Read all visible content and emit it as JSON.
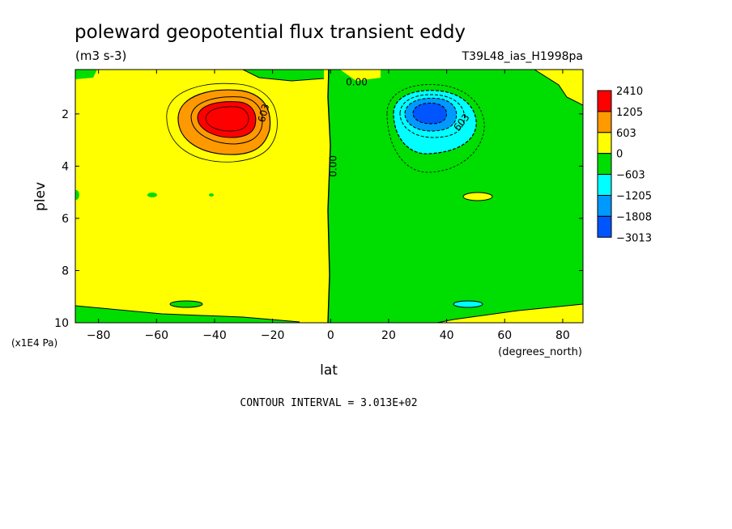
{
  "chart_data": {
    "type": "heatmap",
    "title": "poleward geopotential flux transient eddy",
    "units": "(m3 s-3)",
    "dataset": "T39L48_ias_H1998pa",
    "xlabel": "lat",
    "x_units": "(degrees_north)",
    "ylabel": "plev",
    "y_units": "(x1E4 Pa)",
    "xlim": [
      -88,
      87
    ],
    "ylim": [
      0.3,
      10
    ],
    "y_inverted": true,
    "x_ticks": [
      -80,
      -60,
      -40,
      -20,
      0,
      20,
      40,
      60,
      80
    ],
    "x_tick_labels": [
      "−80",
      "−60",
      "−40",
      "−20",
      "0",
      "20",
      "40",
      "60",
      "80"
    ],
    "y_ticks": [
      2,
      4,
      6,
      8,
      10
    ],
    "y_tick_labels": [
      "2",
      "4",
      "6",
      "8",
      "10"
    ],
    "contour_interval_label": "CONTOUR INTERVAL = 3.013E+02",
    "contour_labels": [
      {
        "text": "0.00",
        "lat": 9,
        "plev": 0.9,
        "rotate": 0
      },
      {
        "text": "0.00",
        "lat": 2,
        "plev": 4.0,
        "rotate": -90
      },
      {
        "text": "603",
        "lat": -22,
        "plev": 2.0,
        "rotate": -75
      },
      {
        "text": "603",
        "lat": 46,
        "plev": 2.4,
        "rotate": -50
      }
    ],
    "colorbar": {
      "labels": [
        "2410",
        "1205",
        "603",
        "0",
        "−603",
        "−1205",
        "−1808",
        "−3013"
      ],
      "colors": [
        "#ff0000",
        "#ff9900",
        "#ffff00",
        "#00dd00",
        "#00ffff",
        "#0099ff",
        "#0055ff"
      ]
    },
    "features": [
      {
        "name": "southern-positive-maximum",
        "lat": -35,
        "plev": 1.9,
        "level": "2410"
      },
      {
        "name": "northern-negative-minimum",
        "lat": 35,
        "plev": 1.8,
        "level": "-3013"
      }
    ],
    "colors": {
      "positive": "#ffff00",
      "negative": "#00dd00",
      "strong_positive": "#ff0000",
      "strong_negative": "#0055ff"
    }
  }
}
